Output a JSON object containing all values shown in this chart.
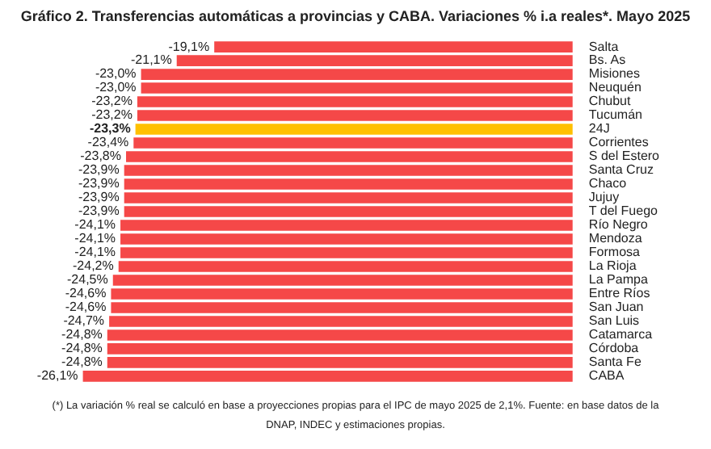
{
  "chart_data": {
    "type": "bar",
    "orientation": "horizontal",
    "title": "Gráfico 2. Transferencias automáticas a provincias y CABA. Variaciones % i.a reales*. Mayo 2025",
    "categories": [
      "Salta",
      "Bs. As",
      "Misiones",
      "Neuquén",
      "Chubut",
      "Tucumán",
      "24J",
      "Corrientes",
      "S del Estero",
      "Santa Cruz",
      "Chaco",
      "Jujuy",
      "T del Fuego",
      "Río Negro",
      "Mendoza",
      "Formosa",
      "La Rioja",
      "La Pampa",
      "Entre Ríos",
      "San Juan",
      "San Luis",
      "Catamarca",
      "Córdoba",
      "Santa Fe",
      "CABA"
    ],
    "values": [
      -19.1,
      -21.1,
      -23.0,
      -23.0,
      -23.2,
      -23.2,
      -23.3,
      -23.4,
      -23.8,
      -23.9,
      -23.9,
      -23.9,
      -23.9,
      -24.1,
      -24.1,
      -24.1,
      -24.2,
      -24.5,
      -24.6,
      -24.6,
      -24.7,
      -24.8,
      -24.8,
      -24.8,
      -26.1
    ],
    "value_labels": [
      "-19,1%",
      "-21,1%",
      "-23,0%",
      "-23,0%",
      "-23,2%",
      "-23,2%",
      "-23,3%",
      "-23,4%",
      "-23,8%",
      "-23,9%",
      "-23,9%",
      "-23,9%",
      "-23,9%",
      "-24,1%",
      "-24,1%",
      "-24,1%",
      "-24,2%",
      "-24,5%",
      "-24,6%",
      "-24,6%",
      "-24,7%",
      "-24,8%",
      "-24,8%",
      "-24,8%",
      "-26,1%"
    ],
    "colors": [
      "#f54848",
      "#f54848",
      "#f54848",
      "#f54848",
      "#f54848",
      "#f54848",
      "#ffc000",
      "#f54848",
      "#f54848",
      "#f54848",
      "#f54848",
      "#f54848",
      "#f54848",
      "#f54848",
      "#f54848",
      "#f54848",
      "#f54848",
      "#f54848",
      "#f54848",
      "#f54848",
      "#f54848",
      "#f54848",
      "#f54848",
      "#f54848",
      "#f54848"
    ],
    "tick_labels": "y",
    "annotations": [
      "(*) La variación % real se calculó en base a proyecciones propias para el IPC de mayo 2025 de 2,1%. Fuente: en base datos de la DNAP, INDEC y estimaciones propias."
    ]
  }
}
